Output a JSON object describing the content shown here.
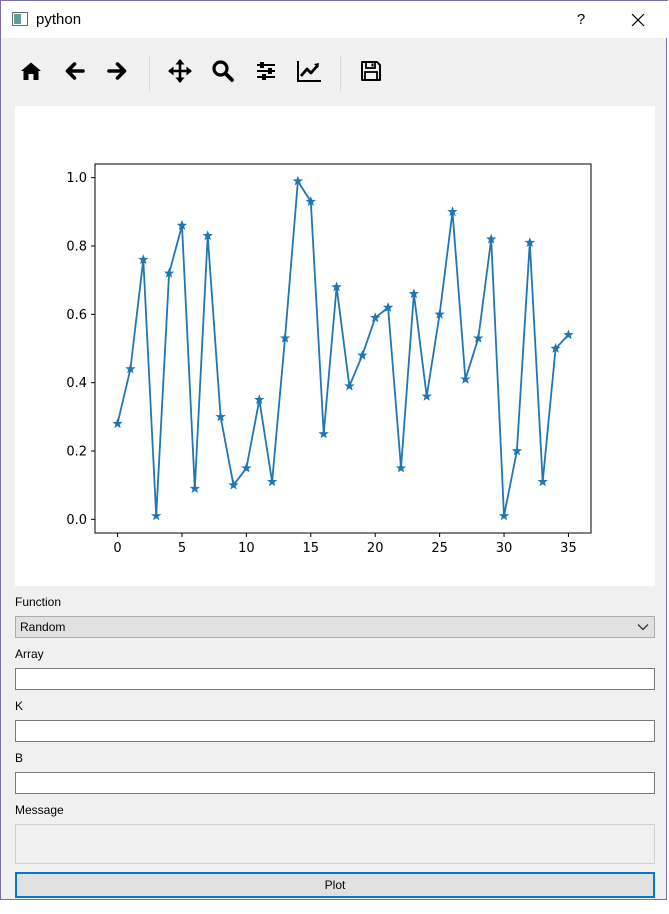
{
  "window": {
    "title": "python",
    "help_label": "?"
  },
  "toolbar": {
    "buttons": [
      {
        "icon": "home-icon"
      },
      {
        "icon": "arrow-left-icon"
      },
      {
        "icon": "arrow-right-icon"
      },
      {
        "icon": "move-icon"
      },
      {
        "icon": "zoom-icon"
      },
      {
        "icon": "sliders-icon"
      },
      {
        "icon": "chart-trend-icon"
      },
      {
        "icon": "save-icon"
      }
    ]
  },
  "chart_data": {
    "type": "line",
    "marker": "star",
    "color": "#1f77b4",
    "x": [
      0,
      1,
      2,
      3,
      4,
      5,
      6,
      7,
      8,
      9,
      10,
      11,
      12,
      13,
      14,
      15,
      16,
      17,
      18,
      19,
      20,
      21,
      22,
      23,
      24,
      25,
      26,
      27,
      28,
      29,
      30,
      31,
      32,
      33,
      34,
      35
    ],
    "values": [
      0.28,
      0.44,
      0.76,
      0.01,
      0.72,
      0.86,
      0.09,
      0.83,
      0.3,
      0.1,
      0.15,
      0.35,
      0.11,
      0.53,
      0.99,
      0.93,
      0.25,
      0.68,
      0.39,
      0.48,
      0.59,
      0.62,
      0.15,
      0.66,
      0.36,
      0.6,
      0.9,
      0.41,
      0.53,
      0.82,
      0.01,
      0.2,
      0.81,
      0.11,
      0.5,
      0.54
    ],
    "xlim": [
      -1.75,
      36.75
    ],
    "ylim": [
      -0.04,
      1.04
    ],
    "xticks": [
      "0",
      "5",
      "10",
      "15",
      "20",
      "25",
      "30",
      "35"
    ],
    "yticks": [
      "0.0",
      "0.2",
      "0.4",
      "0.6",
      "0.8",
      "1.0"
    ],
    "grid": false
  },
  "form": {
    "function_label": "Function",
    "function_value": "Random",
    "array_label": "Array",
    "array_value": "",
    "k_label": "K",
    "k_value": "",
    "b_label": "B",
    "b_value": "",
    "message_label": "Message",
    "message_value": "",
    "plot_button": "Plot"
  }
}
